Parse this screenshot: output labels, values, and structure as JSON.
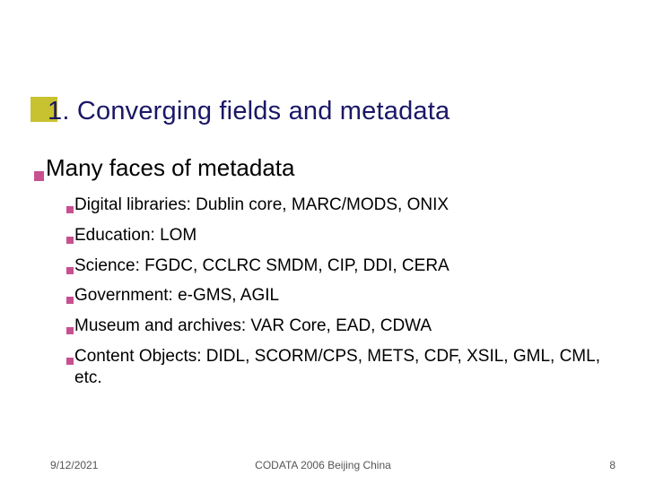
{
  "colors": {
    "title_square": "#c8c230",
    "bullet_square": "#c85090",
    "title_text": "#1a1766",
    "body_text": "#000000",
    "footer_text": "#555555",
    "background": "#ffffff"
  },
  "typography": {
    "title_fontsize": 29,
    "lvl1_fontsize": 26,
    "lvl2_fontsize": 19,
    "footer_fontsize": 12,
    "font_family": "Verdana"
  },
  "title": "1. Converging fields and metadata",
  "lvl1": "Many faces of metadata",
  "items": [
    {
      "text": "Digital libraries: Dublin core, MARC/MODS, ONIX"
    },
    {
      "text": "Education: LOM"
    },
    {
      "text": "Science: FGDC, CCLRC SMDM, CIP, DDI, CERA"
    },
    {
      "text": "Government: e-GMS, AGIL"
    },
    {
      "text": "Museum and archives: VAR Core, EAD, CDWA"
    },
    {
      "text": "Content Objects: DIDL, SCORM/CPS, METS, CDF, XSIL, GML, CML, etc."
    }
  ],
  "footer": {
    "date": "9/12/2021",
    "center": "CODATA 2006 Beijing China",
    "page": "8"
  }
}
